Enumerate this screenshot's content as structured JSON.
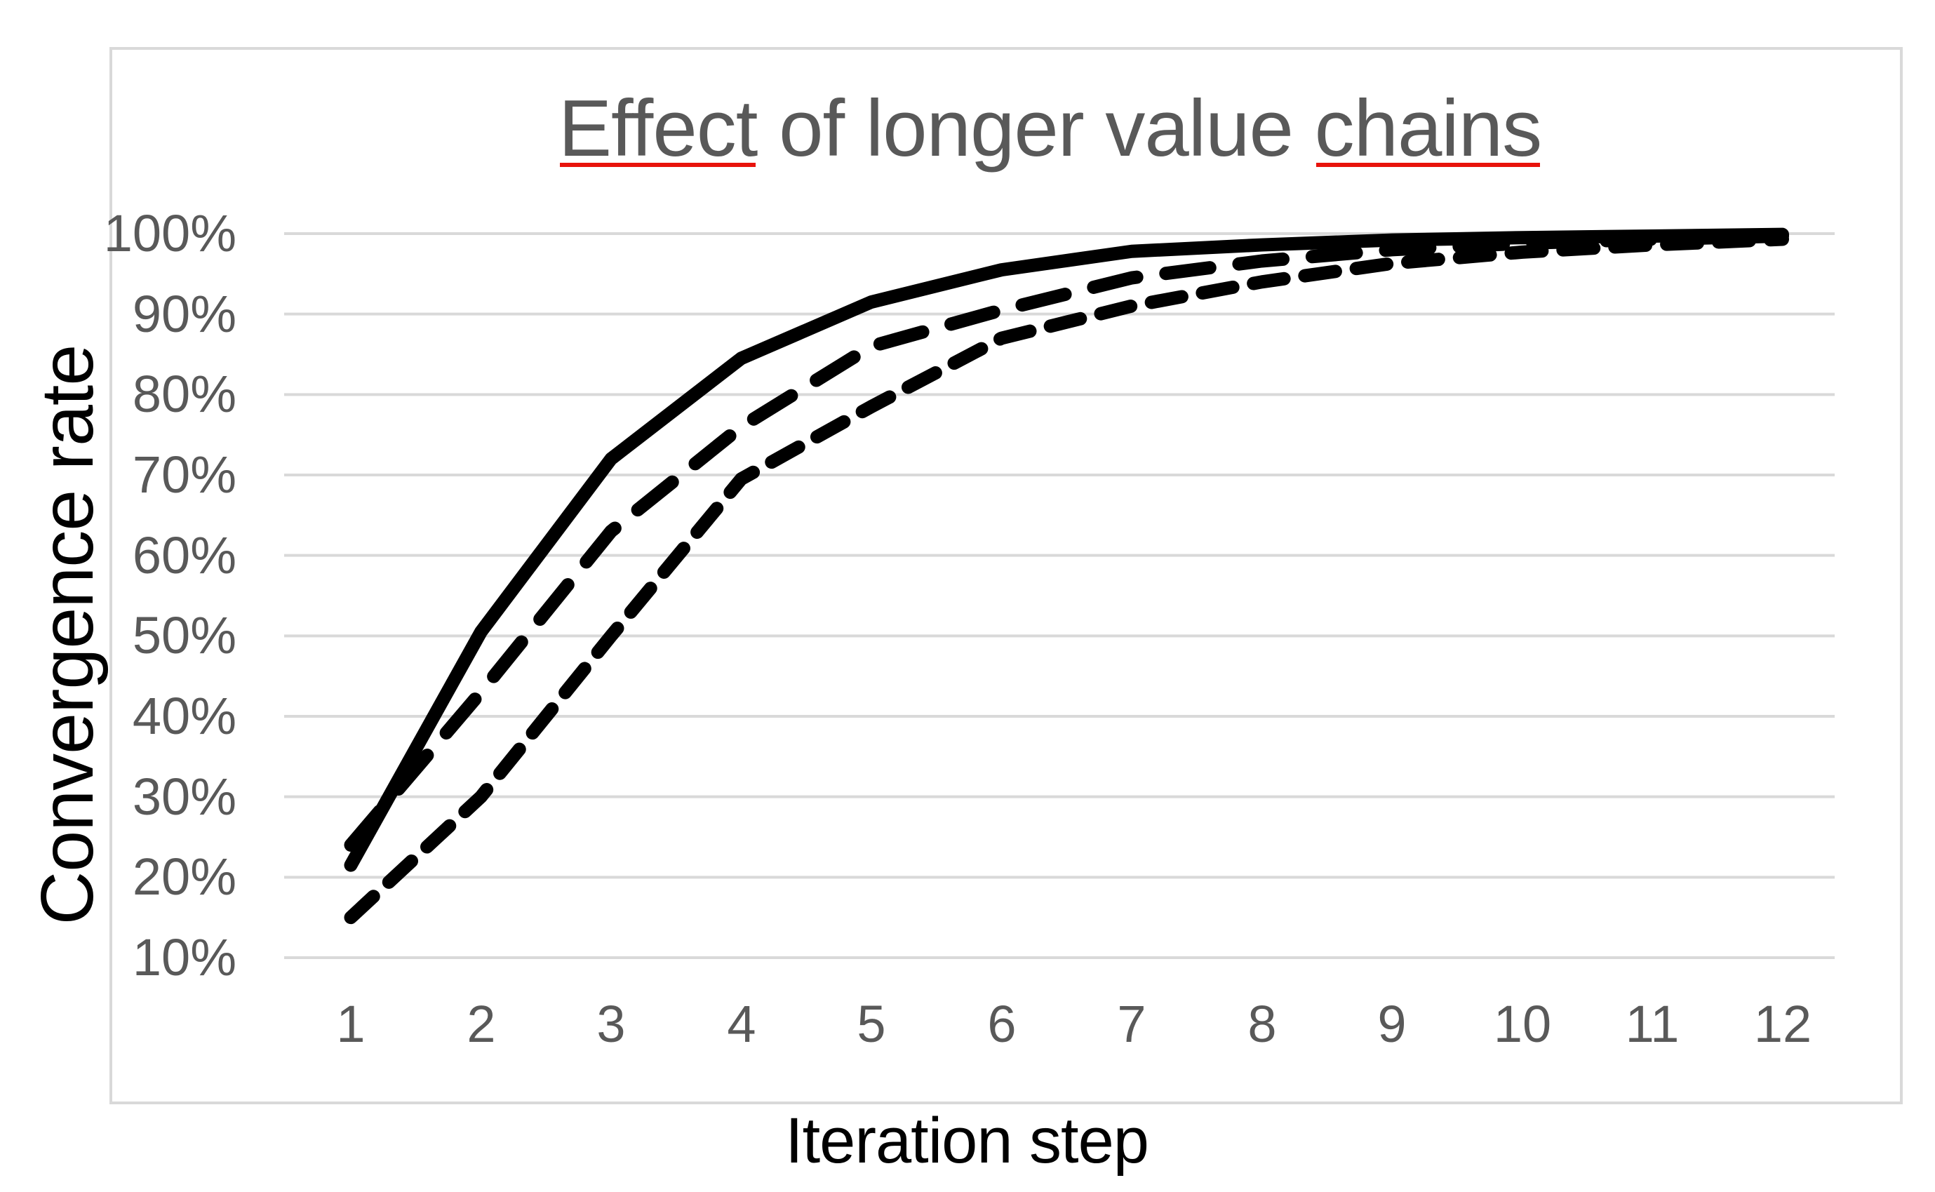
{
  "chart_data": {
    "type": "line",
    "title": "Effect of longer value chains",
    "title_parts": [
      "Effect",
      " of longer value ",
      "chains"
    ],
    "misspelled_underlined_words": [
      "Effect",
      "chains"
    ],
    "xlabel": "Iteration step",
    "ylabel": "Convergence rate",
    "x": [
      1,
      2,
      3,
      4,
      5,
      6,
      7,
      8,
      9,
      10,
      11,
      12
    ],
    "y_tick_labels": [
      "100%",
      "90%",
      "80%",
      "70%",
      "60%",
      "50%",
      "40%",
      "30%",
      "20%",
      "10%"
    ],
    "y_tick_values": [
      100,
      90,
      80,
      70,
      60,
      50,
      40,
      30,
      20,
      10
    ],
    "ylim_pct": [
      10,
      100
    ],
    "grid": true,
    "legend": "none",
    "series": [
      {
        "name": "solid-line",
        "dash": "solid",
        "values_pct": [
          21.5,
          50.5,
          72,
          84.5,
          91.5,
          95.5,
          97.8,
          98.6,
          99.2,
          99.5,
          99.7,
          99.9
        ]
      },
      {
        "name": "long-dash-line",
        "dash": "long",
        "values_pct": [
          24,
          43,
          63,
          76,
          86,
          90.5,
          94.5,
          96.6,
          98,
          98.8,
          99.3,
          99.7
        ]
      },
      {
        "name": "short-dash-line",
        "dash": "short",
        "values_pct": [
          15,
          30,
          50,
          69.5,
          78.5,
          87,
          91,
          94,
          96.3,
          97.7,
          98.6,
          99.3
        ]
      }
    ],
    "line_color": "#000000",
    "gridline_color": "#d9d9d9",
    "tick_label_color": "#595959",
    "title_color": "#595959",
    "axis_title_color": "#000000",
    "spellcheck_underline_color": "#e8130c"
  }
}
